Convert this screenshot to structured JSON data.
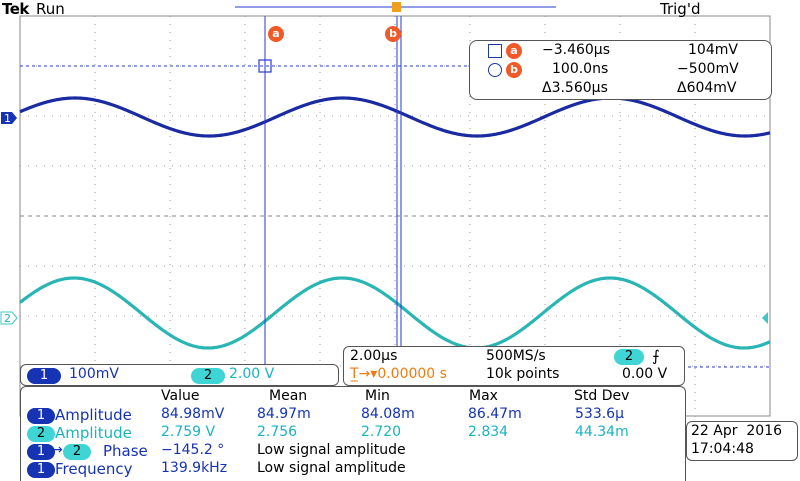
{
  "header": {
    "brand": "Tek",
    "run_state": "Run",
    "trigger_status": "Trig'd"
  },
  "cursors": {
    "a_label": "a",
    "b_label": "b",
    "a_time": "−3.460µs",
    "a_value": "104mV",
    "b_time": "100.0ns",
    "b_value": "−500mV",
    "delta_time": "Δ3.560µs",
    "delta_value": "Δ604mV"
  },
  "channels": {
    "ch1_label": "1",
    "ch1_scale": "100mV",
    "ch2_label": "2",
    "ch2_scale": "2.00 V",
    "ch1_color": "#1a2aa0",
    "ch2_color": "#2ab5b5"
  },
  "timebase": {
    "horizontal_scale": "2.00µs",
    "sample_rate": "500MS/s",
    "trigger_source": "2",
    "trigger_slope_icon": "rising-edge-icon",
    "trigger_position": "0.00000 s",
    "record_length": "10k points",
    "trigger_level": "0.00 V"
  },
  "measurements": {
    "headers": [
      "Value",
      "Mean",
      "Min",
      "Max",
      "Std Dev"
    ],
    "rows": [
      {
        "source": "1",
        "name": "Amplitude",
        "value": "84.98mV",
        "mean": "84.97m",
        "min": "84.08m",
        "max": "86.47m",
        "std": "533.6µ"
      },
      {
        "source": "2",
        "name": "Amplitude",
        "value": "2.759 V",
        "mean": "2.756",
        "min": "2.720",
        "max": "2.834",
        "std": "44.34m"
      },
      {
        "source": "1",
        "source2": "2",
        "name": "Phase",
        "value": "−145.2 °",
        "note": "Low signal amplitude"
      },
      {
        "source": "1",
        "name": "Frequency",
        "value": "139.9kHz",
        "note": "Low signal amplitude"
      }
    ]
  },
  "datetime": {
    "date": "22 Apr  2016",
    "time": "17:04:48"
  }
}
